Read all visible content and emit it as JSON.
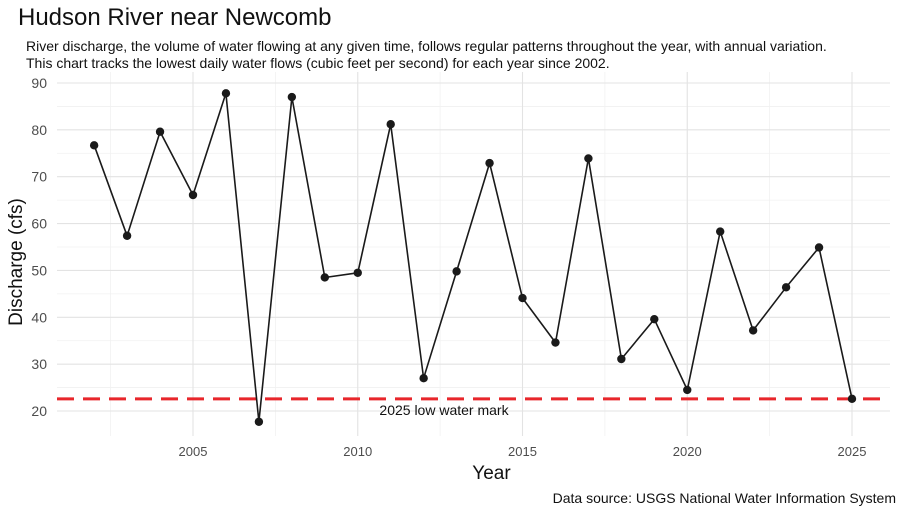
{
  "chart_data": {
    "type": "line",
    "title": "Hudson River near Newcomb",
    "subtitle": [
      "River discharge, the volume of water flowing at any given time, follows regular patterns throughout the year, with annual variation.",
      "This chart tracks the lowest daily water flows (cubic feet per second) for each year since 2002."
    ],
    "caption": "Data source: USGS National Water Information System",
    "xlabel": "Year",
    "ylabel": "Discharge (cfs)",
    "xlim": [
      2001,
      2026
    ],
    "ylim": [
      15,
      90
    ],
    "x_ticks": [
      2005,
      2010,
      2015,
      2020,
      2025
    ],
    "y_ticks": [
      20,
      30,
      40,
      50,
      60,
      70,
      80,
      90
    ],
    "grid": true,
    "series": [
      {
        "color": "#1a1a1a",
        "x": [
          2002,
          2003,
          2004,
          2005,
          2006,
          2007,
          2008,
          2009,
          2010,
          2011,
          2012,
          2013,
          2014,
          2015,
          2016,
          2017,
          2018,
          2019,
          2020,
          2021,
          2022,
          2023,
          2024,
          2025
        ],
        "y": [
          76.7,
          57.4,
          79.6,
          66.1,
          87.8,
          17.7,
          87.0,
          48.5,
          49.5,
          81.2,
          27.0,
          49.8,
          72.9,
          44.1,
          34.6,
          73.9,
          31.1,
          39.6,
          24.5,
          58.3,
          37.2,
          46.4,
          54.9,
          22.6
        ]
      }
    ],
    "reference_line": {
      "y": 22.6,
      "label": "2025 low water mark",
      "color": "#e8262b"
    }
  }
}
